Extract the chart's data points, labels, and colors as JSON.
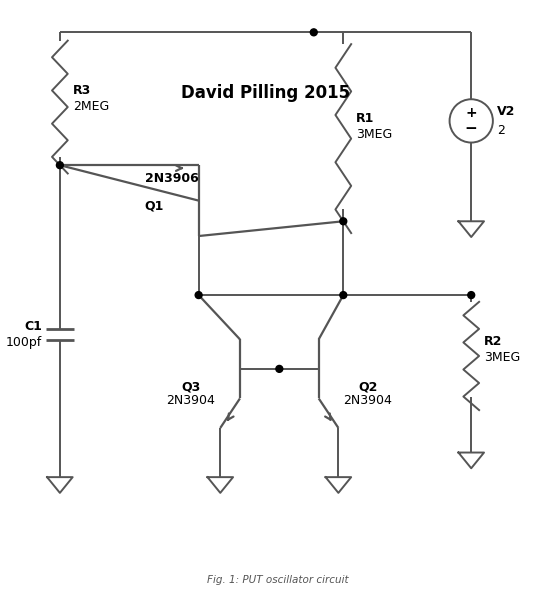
{
  "title": "David Pilling 2015",
  "caption": "Fig. 1: PUT oscillator circuit",
  "bg_color": "#ffffff",
  "line_color": "#555555",
  "text_color": "#000000",
  "node_color": "#000000",
  "lw": 1.4,
  "lw2": 1.6,
  "node_r": 3.5,
  "components": {
    "R3": {
      "label": "R3",
      "value": "2MEG"
    },
    "R1": {
      "label": "R1",
      "value": "3MEG"
    },
    "R2": {
      "label": "R2",
      "value": "3MEG"
    },
    "C1": {
      "label": "C1",
      "value": "100pf"
    },
    "V2": {
      "label": "V2",
      "value": "2"
    },
    "Q1": {
      "label": "Q1",
      "type": "2N3906"
    },
    "Q2": {
      "label": "Q2",
      "type": "2N3904"
    },
    "Q3": {
      "label": "Q3",
      "type": "2N3904"
    }
  }
}
